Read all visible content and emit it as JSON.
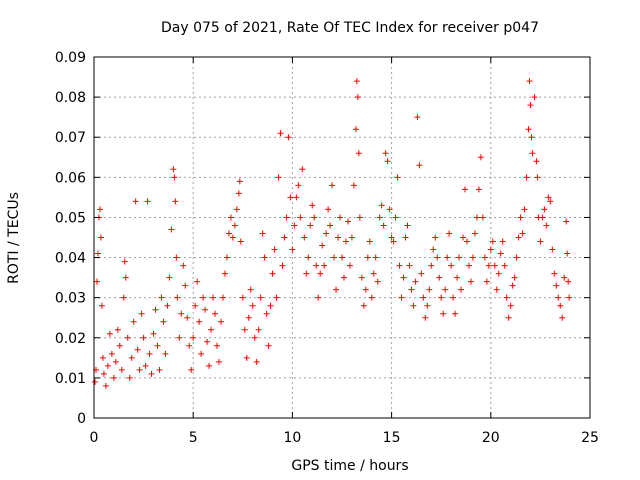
{
  "chart_data": {
    "type": "scatter",
    "title": "Day 075 of 2021, Rate Of TEC Index for receiver p047",
    "xlabel": "GPS time / hours",
    "ylabel": "ROTI / TECUs",
    "xlim": [
      0,
      25
    ],
    "ylim": [
      0,
      0.09
    ],
    "x_ticks": [
      0,
      5,
      10,
      15,
      20,
      25
    ],
    "x_tick_labels": [
      "0",
      "5",
      "10",
      "15",
      "20",
      "25"
    ],
    "y_ticks": [
      0,
      0.01,
      0.02,
      0.03,
      0.04,
      0.05,
      0.06,
      0.07,
      0.08,
      0.09
    ],
    "y_tick_labels": [
      "0",
      "0.01",
      "0.02",
      "0.03",
      "0.04",
      "0.05",
      "0.06",
      "0.07",
      "0.08",
      "0.09"
    ],
    "grid": true,
    "marker": "+",
    "color": "#ff0000",
    "series": [
      {
        "name": "ROTI p047",
        "points": [
          [
            0.05,
            0.009
          ],
          [
            0.1,
            0.012
          ],
          [
            0.15,
            0.034
          ],
          [
            0.2,
            0.041
          ],
          [
            0.25,
            0.05
          ],
          [
            0.3,
            0.052
          ],
          [
            0.35,
            0.045
          ],
          [
            0.4,
            0.028
          ],
          [
            0.45,
            0.015
          ],
          [
            0.5,
            0.011
          ],
          [
            0.6,
            0.008
          ],
          [
            0.7,
            0.013
          ],
          [
            0.8,
            0.021
          ],
          [
            0.9,
            0.016
          ],
          [
            1.0,
            0.01
          ],
          [
            1.1,
            0.014
          ],
          [
            1.2,
            0.022
          ],
          [
            1.3,
            0.018
          ],
          [
            1.4,
            0.012
          ],
          [
            1.5,
            0.03
          ],
          [
            1.55,
            0.039
          ],
          [
            1.6,
            0.035
          ],
          [
            1.7,
            0.02
          ],
          [
            1.8,
            0.01
          ],
          [
            1.9,
            0.015
          ],
          [
            2.0,
            0.024
          ],
          [
            2.1,
            0.054
          ],
          [
            2.2,
            0.017
          ],
          [
            2.3,
            0.012
          ],
          [
            2.4,
            0.026
          ],
          [
            2.5,
            0.02
          ],
          [
            2.6,
            0.013
          ],
          [
            2.7,
            0.054
          ],
          [
            2.8,
            0.016
          ],
          [
            2.9,
            0.011
          ],
          [
            3.0,
            0.021
          ],
          [
            3.1,
            0.027
          ],
          [
            3.2,
            0.018
          ],
          [
            3.3,
            0.012
          ],
          [
            3.4,
            0.03
          ],
          [
            3.5,
            0.024
          ],
          [
            3.6,
            0.016
          ],
          [
            3.7,
            0.028
          ],
          [
            3.8,
            0.035
          ],
          [
            3.9,
            0.047
          ],
          [
            4.0,
            0.062
          ],
          [
            4.05,
            0.06
          ],
          [
            4.1,
            0.054
          ],
          [
            4.15,
            0.04
          ],
          [
            4.2,
            0.03
          ],
          [
            4.3,
            0.02
          ],
          [
            4.4,
            0.026
          ],
          [
            4.5,
            0.038
          ],
          [
            4.6,
            0.033
          ],
          [
            4.7,
            0.025
          ],
          [
            4.8,
            0.018
          ],
          [
            4.9,
            0.012
          ],
          [
            5.0,
            0.02
          ],
          [
            5.1,
            0.028
          ],
          [
            5.2,
            0.034
          ],
          [
            5.3,
            0.024
          ],
          [
            5.4,
            0.016
          ],
          [
            5.5,
            0.03
          ],
          [
            5.6,
            0.027
          ],
          [
            5.7,
            0.019
          ],
          [
            5.8,
            0.013
          ],
          [
            5.9,
            0.022
          ],
          [
            6.0,
            0.03
          ],
          [
            6.1,
            0.026
          ],
          [
            6.2,
            0.018
          ],
          [
            6.3,
            0.014
          ],
          [
            6.4,
            0.024
          ],
          [
            6.5,
            0.03
          ],
          [
            6.6,
            0.036
          ],
          [
            6.7,
            0.04
          ],
          [
            6.8,
            0.046
          ],
          [
            6.9,
            0.05
          ],
          [
            7.0,
            0.045
          ],
          [
            7.1,
            0.048
          ],
          [
            7.2,
            0.052
          ],
          [
            7.3,
            0.056
          ],
          [
            7.35,
            0.059
          ],
          [
            7.4,
            0.044
          ],
          [
            7.5,
            0.03
          ],
          [
            7.6,
            0.022
          ],
          [
            7.7,
            0.015
          ],
          [
            7.8,
            0.025
          ],
          [
            7.9,
            0.032
          ],
          [
            8.0,
            0.028
          ],
          [
            8.1,
            0.02
          ],
          [
            8.2,
            0.014
          ],
          [
            8.3,
            0.022
          ],
          [
            8.4,
            0.03
          ],
          [
            8.5,
            0.046
          ],
          [
            8.6,
            0.04
          ],
          [
            8.7,
            0.026
          ],
          [
            8.8,
            0.018
          ],
          [
            8.9,
            0.028
          ],
          [
            9.0,
            0.036
          ],
          [
            9.1,
            0.042
          ],
          [
            9.2,
            0.03
          ],
          [
            9.3,
            0.06
          ],
          [
            9.4,
            0.071
          ],
          [
            9.5,
            0.038
          ],
          [
            9.6,
            0.045
          ],
          [
            9.7,
            0.05
          ],
          [
            9.8,
            0.07
          ],
          [
            9.9,
            0.055
          ],
          [
            10.0,
            0.042
          ],
          [
            10.1,
            0.048
          ],
          [
            10.2,
            0.055
          ],
          [
            10.3,
            0.058
          ],
          [
            10.4,
            0.05
          ],
          [
            10.5,
            0.062
          ],
          [
            10.6,
            0.045
          ],
          [
            10.7,
            0.036
          ],
          [
            10.8,
            0.04
          ],
          [
            10.9,
            0.048
          ],
          [
            11.0,
            0.053
          ],
          [
            11.1,
            0.05
          ],
          [
            11.2,
            0.038
          ],
          [
            11.3,
            0.03
          ],
          [
            11.4,
            0.036
          ],
          [
            11.5,
            0.043
          ],
          [
            11.6,
            0.038
          ],
          [
            11.7,
            0.046
          ],
          [
            11.8,
            0.052
          ],
          [
            11.9,
            0.048
          ],
          [
            12.0,
            0.058
          ],
          [
            12.1,
            0.04
          ],
          [
            12.2,
            0.032
          ],
          [
            12.3,
            0.045
          ],
          [
            12.4,
            0.05
          ],
          [
            12.5,
            0.04
          ],
          [
            12.6,
            0.035
          ],
          [
            12.7,
            0.044
          ],
          [
            12.8,
            0.049
          ],
          [
            12.9,
            0.038
          ],
          [
            13.0,
            0.045
          ],
          [
            13.1,
            0.058
          ],
          [
            13.2,
            0.072
          ],
          [
            13.25,
            0.084
          ],
          [
            13.3,
            0.08
          ],
          [
            13.35,
            0.066
          ],
          [
            13.4,
            0.05
          ],
          [
            13.5,
            0.035
          ],
          [
            13.6,
            0.028
          ],
          [
            13.7,
            0.032
          ],
          [
            13.8,
            0.04
          ],
          [
            13.9,
            0.044
          ],
          [
            14.0,
            0.03
          ],
          [
            14.1,
            0.036
          ],
          [
            14.2,
            0.04
          ],
          [
            14.3,
            0.034
          ],
          [
            14.4,
            0.05
          ],
          [
            14.5,
            0.053
          ],
          [
            14.6,
            0.048
          ],
          [
            14.7,
            0.066
          ],
          [
            14.8,
            0.064
          ],
          [
            14.9,
            0.052
          ],
          [
            15.0,
            0.045
          ],
          [
            15.1,
            0.044
          ],
          [
            15.2,
            0.05
          ],
          [
            15.3,
            0.06
          ],
          [
            15.4,
            0.038
          ],
          [
            15.5,
            0.03
          ],
          [
            15.6,
            0.035
          ],
          [
            15.7,
            0.045
          ],
          [
            15.8,
            0.048
          ],
          [
            15.9,
            0.038
          ],
          [
            16.0,
            0.032
          ],
          [
            16.1,
            0.028
          ],
          [
            16.2,
            0.034
          ],
          [
            16.3,
            0.075
          ],
          [
            16.4,
            0.063
          ],
          [
            16.5,
            0.036
          ],
          [
            16.6,
            0.03
          ],
          [
            16.7,
            0.025
          ],
          [
            16.8,
            0.028
          ],
          [
            16.9,
            0.032
          ],
          [
            17.0,
            0.038
          ],
          [
            17.1,
            0.042
          ],
          [
            17.2,
            0.045
          ],
          [
            17.3,
            0.04
          ],
          [
            17.4,
            0.035
          ],
          [
            17.5,
            0.03
          ],
          [
            17.6,
            0.026
          ],
          [
            17.7,
            0.032
          ],
          [
            17.8,
            0.04
          ],
          [
            17.9,
            0.046
          ],
          [
            18.0,
            0.038
          ],
          [
            18.1,
            0.03
          ],
          [
            18.2,
            0.026
          ],
          [
            18.3,
            0.035
          ],
          [
            18.4,
            0.04
          ],
          [
            18.5,
            0.032
          ],
          [
            18.6,
            0.045
          ],
          [
            18.7,
            0.057
          ],
          [
            18.8,
            0.044
          ],
          [
            18.9,
            0.038
          ],
          [
            19.0,
            0.034
          ],
          [
            19.1,
            0.04
          ],
          [
            19.2,
            0.046
          ],
          [
            19.3,
            0.05
          ],
          [
            19.4,
            0.057
          ],
          [
            19.5,
            0.065
          ],
          [
            19.6,
            0.05
          ],
          [
            19.7,
            0.04
          ],
          [
            19.8,
            0.034
          ],
          [
            19.9,
            0.038
          ],
          [
            20.0,
            0.042
          ],
          [
            20.1,
            0.044
          ],
          [
            20.2,
            0.038
          ],
          [
            20.3,
            0.032
          ],
          [
            20.4,
            0.036
          ],
          [
            20.5,
            0.041
          ],
          [
            20.6,
            0.044
          ],
          [
            20.7,
            0.038
          ],
          [
            20.8,
            0.03
          ],
          [
            20.9,
            0.025
          ],
          [
            21.0,
            0.028
          ],
          [
            21.1,
            0.033
          ],
          [
            21.2,
            0.035
          ],
          [
            21.3,
            0.04
          ],
          [
            21.4,
            0.045
          ],
          [
            21.5,
            0.05
          ],
          [
            21.6,
            0.046
          ],
          [
            21.7,
            0.052
          ],
          [
            21.8,
            0.06
          ],
          [
            21.9,
            0.072
          ],
          [
            21.95,
            0.084
          ],
          [
            22.0,
            0.078
          ],
          [
            22.05,
            0.07
          ],
          [
            22.1,
            0.066
          ],
          [
            22.2,
            0.08
          ],
          [
            22.3,
            0.064
          ],
          [
            22.35,
            0.06
          ],
          [
            22.4,
            0.05
          ],
          [
            22.5,
            0.044
          ],
          [
            22.6,
            0.05
          ],
          [
            22.7,
            0.052
          ],
          [
            22.8,
            0.048
          ],
          [
            22.9,
            0.055
          ],
          [
            23.0,
            0.054
          ],
          [
            23.1,
            0.042
          ],
          [
            23.2,
            0.036
          ],
          [
            23.3,
            0.033
          ],
          [
            23.4,
            0.03
          ],
          [
            23.5,
            0.028
          ],
          [
            23.6,
            0.025
          ],
          [
            23.7,
            0.035
          ],
          [
            23.8,
            0.049
          ],
          [
            23.85,
            0.041
          ],
          [
            23.9,
            0.034
          ],
          [
            23.95,
            0.03
          ]
        ]
      }
    ]
  }
}
